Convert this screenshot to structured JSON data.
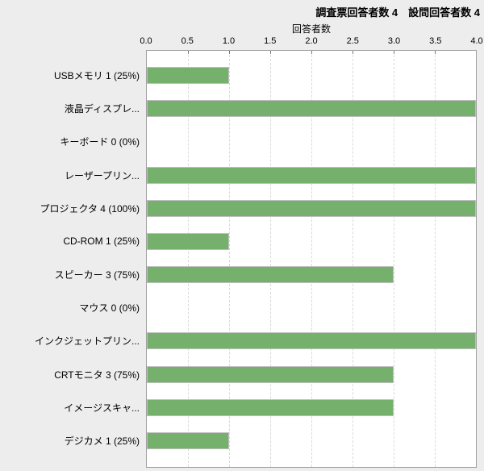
{
  "header": {
    "summary": "調査票回答者数 4　設問回答者数 4"
  },
  "chart_data": {
    "type": "bar",
    "orientation": "horizontal",
    "axis_title": "回答者数",
    "xlabel": "回答者数",
    "ylabel": "",
    "xlim": [
      0,
      4
    ],
    "x_ticks": [
      "0.0",
      "0.5",
      "1.0",
      "1.5",
      "2.0",
      "2.5",
      "3.0",
      "3.5",
      "4.0"
    ],
    "grid": "vertical-dashed",
    "legend": "none",
    "categories": [
      "USBメモリ 1 (25%)",
      "液晶ディスプレ...",
      "キーボード 0 (0%)",
      "レーザープリン...",
      "プロジェクタ 4 (100%)",
      "CD-ROM 1 (25%)",
      "スピーカー 3 (75%)",
      "マウス 0 (0%)",
      "インクジェットプリン...",
      "CRTモニタ 3 (75%)",
      "イメージスキャ...",
      "デジカメ 1 (25%)"
    ],
    "values": [
      1,
      4,
      0,
      4,
      4,
      1,
      3,
      0,
      4,
      3,
      3,
      1
    ],
    "colors": {
      "bar": "#75b06d",
      "bar_border": "#bfbfbf",
      "plot_background": "#ffffff",
      "plot_border": "#a0a0a0",
      "gridline": "#d9d9d9",
      "page_background": "#ededed",
      "text": "#000000"
    }
  }
}
